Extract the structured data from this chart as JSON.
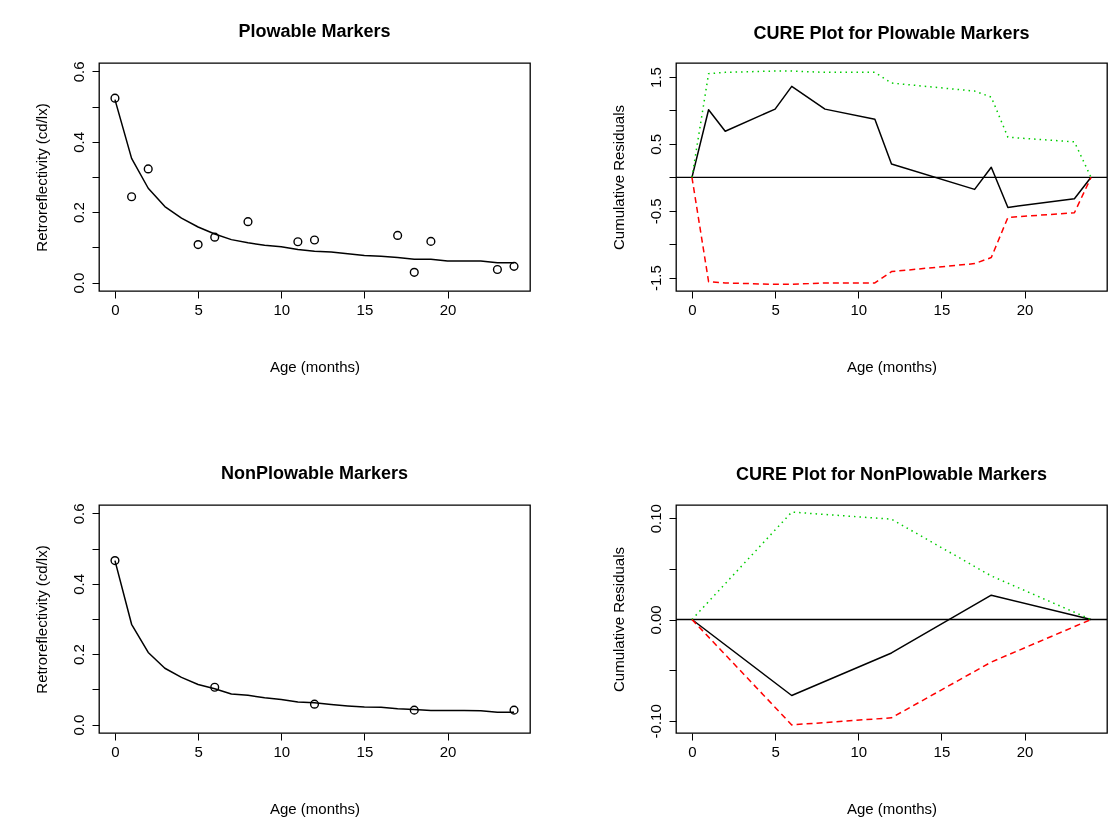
{
  "chart_data": [
    {
      "type": "scatter",
      "title": "Plowable Markers",
      "xlabel": "Age (months)",
      "ylabel": "Retroreflectivity (cd/lx)",
      "xlim": [
        -0.96,
        24.96
      ],
      "ylim": [
        -0.024,
        0.624
      ],
      "xticks": [
        0,
        5,
        10,
        15,
        20
      ],
      "yticks": [
        {
          "value": 0,
          "label": "0.0"
        },
        {
          "value": 0.1,
          "label": null
        },
        0.2,
        {
          "value": 0.3,
          "label": null
        },
        0.4,
        {
          "value": 0.5,
          "label": null
        },
        0.6
      ],
      "grid": false,
      "series": [
        {
          "marker": "circle",
          "color": "#000000",
          "x": [
            0,
            1,
            2,
            5,
            6,
            8,
            11,
            12,
            17,
            18,
            19,
            23,
            24
          ],
          "values": [
            0.524,
            0.244,
            0.323,
            0.108,
            0.129,
            0.173,
            0.116,
            0.121,
            0.134,
            0.029,
            0.117,
            0.037,
            0.046
          ]
        },
        {
          "type": "line",
          "marker": "none",
          "line_style": "solid",
          "color": "#000000",
          "x": [
            0,
            1,
            2,
            3,
            4,
            5,
            6,
            7,
            8,
            9,
            10,
            11,
            12,
            13,
            14,
            15,
            16,
            17,
            18,
            19,
            20,
            21,
            22,
            23,
            24
          ],
          "values": [
            0.52,
            0.353,
            0.268,
            0.216,
            0.183,
            0.158,
            0.138,
            0.122,
            0.113,
            0.106,
            0.102,
            0.094,
            0.089,
            0.087,
            0.082,
            0.077,
            0.075,
            0.071,
            0.066,
            0.066,
            0.061,
            0.061,
            0.061,
            0.056,
            0.056
          ]
        }
      ]
    },
    {
      "type": "line",
      "title": "CURE Plot for Plowable Markers",
      "xlabel": "Age (months)",
      "ylabel": "Cumulative Residuals",
      "xlim": [
        -0.96,
        24.96
      ],
      "ylim": [
        -1.7,
        1.71
      ],
      "xticks": [
        0,
        5,
        10,
        15,
        20
      ],
      "yticks": [
        -1.5,
        {
          "value": -1,
          "label": null
        },
        -0.5,
        {
          "value": 0,
          "label": null
        },
        0.5,
        {
          "value": 1,
          "label": null
        },
        1.5
      ],
      "grid": false,
      "ref_lines": [
        {
          "axis": "y",
          "value": 0,
          "color": "#000000"
        }
      ],
      "series": [
        {
          "color": "#000000",
          "line_style": "solid",
          "x": [
            0,
            1,
            2,
            5,
            6,
            8,
            11,
            12,
            17,
            18,
            19,
            23,
            24
          ],
          "values": [
            0,
            1.01,
            0.69,
            1.02,
            1.36,
            1.02,
            0.87,
            0.2,
            -0.18,
            0.15,
            -0.45,
            -0.32,
            0
          ]
        },
        {
          "color": "#00cd00",
          "line_style": "dotted",
          "x": [
            0,
            1,
            2,
            5,
            6,
            8,
            11,
            12,
            17,
            18,
            19,
            23,
            24
          ],
          "values": [
            0,
            1.55,
            1.57,
            1.59,
            1.59,
            1.57,
            1.57,
            1.41,
            1.29,
            1.2,
            0.6,
            0.53,
            0
          ]
        },
        {
          "color": "#ff0000",
          "line_style": "dashed",
          "x": [
            0,
            1,
            2,
            5,
            6,
            8,
            11,
            12,
            17,
            18,
            19,
            23,
            24
          ],
          "values": [
            0,
            -1.56,
            -1.58,
            -1.6,
            -1.6,
            -1.58,
            -1.58,
            -1.41,
            -1.29,
            -1.2,
            -0.6,
            -0.53,
            0
          ]
        }
      ]
    },
    {
      "type": "scatter",
      "title": "NonPlowable Markers",
      "xlabel": "Age (months)",
      "ylabel": "Retroreflectivity (cd/lx)",
      "xlim": [
        -0.96,
        24.96
      ],
      "ylim": [
        -0.024,
        0.624
      ],
      "xticks": [
        0,
        5,
        10,
        15,
        20
      ],
      "yticks": [
        {
          "value": 0,
          "label": "0.0"
        },
        {
          "value": 0.1,
          "label": null
        },
        0.2,
        {
          "value": 0.3,
          "label": null
        },
        0.4,
        {
          "value": 0.5,
          "label": null
        },
        0.6
      ],
      "grid": false,
      "series": [
        {
          "marker": "circle",
          "color": "#000000",
          "x": [
            0,
            6,
            12,
            18,
            24
          ],
          "values": [
            0.466,
            0.106,
            0.058,
            0.041,
            0.041
          ]
        },
        {
          "type": "line",
          "marker": "none",
          "line_style": "solid",
          "color": "#000000",
          "x": [
            0,
            1,
            2,
            3,
            4,
            5,
            6,
            7,
            8,
            9,
            10,
            11,
            12,
            13,
            14,
            15,
            16,
            17,
            18,
            19,
            20,
            21,
            22,
            23,
            24
          ],
          "values": [
            0.466,
            0.285,
            0.205,
            0.16,
            0.134,
            0.114,
            0.102,
            0.087,
            0.083,
            0.076,
            0.071,
            0.064,
            0.062,
            0.057,
            0.053,
            0.05,
            0.049,
            0.045,
            0.043,
            0.04,
            0.04,
            0.04,
            0.039,
            0.035,
            0.035
          ]
        }
      ]
    },
    {
      "type": "line",
      "title": "CURE Plot for NonPlowable Markers",
      "xlabel": "Age (months)",
      "ylabel": "Cumulative Residuals",
      "xlim": [
        -0.96,
        24.96
      ],
      "ylim": [
        -0.112,
        0.113
      ],
      "xticks": [
        0,
        5,
        10,
        15,
        20
      ],
      "yticks": [
        {
          "value": -0.1,
          "label": "-0.10"
        },
        {
          "value": -0.05,
          "label": null
        },
        {
          "value": 0,
          "label": "0.00"
        },
        {
          "value": 0.05,
          "label": null
        },
        {
          "value": 0.1,
          "label": "0.10"
        }
      ],
      "grid": false,
      "ref_lines": [
        {
          "axis": "y",
          "value": 0,
          "color": "#000000"
        }
      ],
      "series": [
        {
          "color": "#000000",
          "line_style": "solid",
          "x": [
            0,
            6,
            12,
            18,
            24
          ],
          "values": [
            0,
            -0.075,
            -0.033,
            0.024,
            0
          ]
        },
        {
          "color": "#00cd00",
          "line_style": "dotted",
          "x": [
            0,
            6,
            12,
            18,
            24
          ],
          "values": [
            0,
            0.106,
            0.099,
            0.043,
            0
          ]
        },
        {
          "color": "#ff0000",
          "line_style": "dashed",
          "x": [
            0,
            6,
            12,
            18,
            24
          ],
          "values": [
            0,
            -0.104,
            -0.097,
            -0.042,
            0
          ]
        }
      ]
    }
  ]
}
